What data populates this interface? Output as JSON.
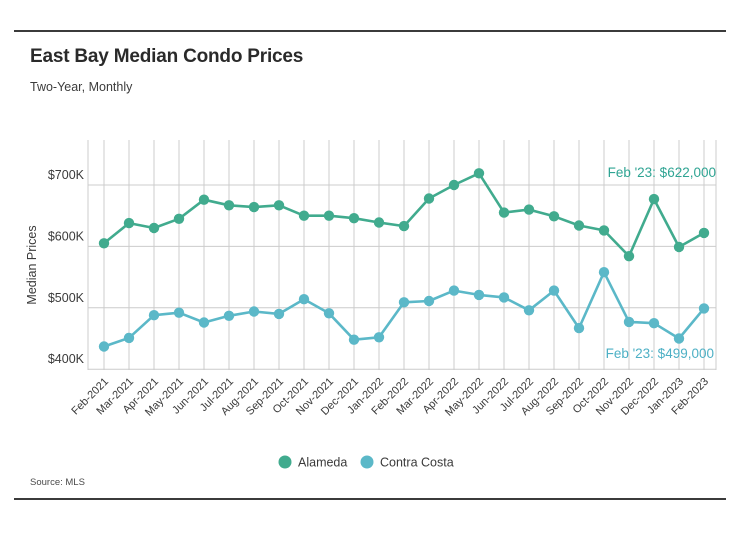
{
  "header": {
    "title": "East Bay Median Condo Prices",
    "subtitle": "Two-Year, Monthly"
  },
  "footer": {
    "source": "Source: MLS"
  },
  "chart_data": {
    "type": "line",
    "title": "East Bay Median Condo Prices",
    "subtitle": "Two-Year, Monthly",
    "xlabel": "",
    "ylabel": "Median Prices",
    "unit": "USD thousands",
    "ylim": [
      395,
      775
    ],
    "yticks": [
      400,
      500,
      600,
      700
    ],
    "ytick_labels": [
      "$400K",
      "$500K",
      "$600K",
      "$700K"
    ],
    "grid": true,
    "legend_position": "bottom-center",
    "categories": [
      "Feb-2021",
      "Mar-2021",
      "Apr-2021",
      "May-2021",
      "Jun-2021",
      "Jul-2021",
      "Aug-2021",
      "Sep-2021",
      "Oct-2021",
      "Nov-2021",
      "Dec-2021",
      "Jan-2022",
      "Feb-2022",
      "Mar-2022",
      "Apr-2022",
      "May-2022",
      "Jun-2022",
      "Jul-2022",
      "Aug-2022",
      "Sep-2022",
      "Oct-2022",
      "Nov-2022",
      "Dec-2022",
      "Jan-2023",
      "Feb-2023"
    ],
    "series": [
      {
        "name": "Alameda",
        "color": "#41ab8e",
        "values": [
          605,
          638,
          630,
          645,
          676,
          667,
          664,
          667,
          650,
          650,
          646,
          639,
          633,
          678,
          700,
          719,
          655,
          660,
          649,
          634,
          626,
          584,
          677,
          599,
          622
        ]
      },
      {
        "name": "Contra Costa",
        "color": "#5bb8c8",
        "values": [
          437,
          451,
          488,
          492,
          476,
          487,
          494,
          490,
          514,
          491,
          448,
          452,
          509,
          511,
          528,
          521,
          517,
          496,
          528,
          467,
          558,
          477,
          475,
          450,
          499
        ]
      }
    ],
    "annotations": [
      {
        "text": "Feb '23: $622,000",
        "series": "Alameda",
        "color": "#2fa493",
        "position": "top-right"
      },
      {
        "text": "Feb '23: $499,000",
        "series": "Contra Costa",
        "color": "#4db0c5",
        "position": "lower-right"
      }
    ],
    "style": {
      "grid_color": "#cccccc",
      "axis_text_color": "#3a3a3a",
      "marker_radius": 5.2,
      "line_width": 2.6
    }
  }
}
